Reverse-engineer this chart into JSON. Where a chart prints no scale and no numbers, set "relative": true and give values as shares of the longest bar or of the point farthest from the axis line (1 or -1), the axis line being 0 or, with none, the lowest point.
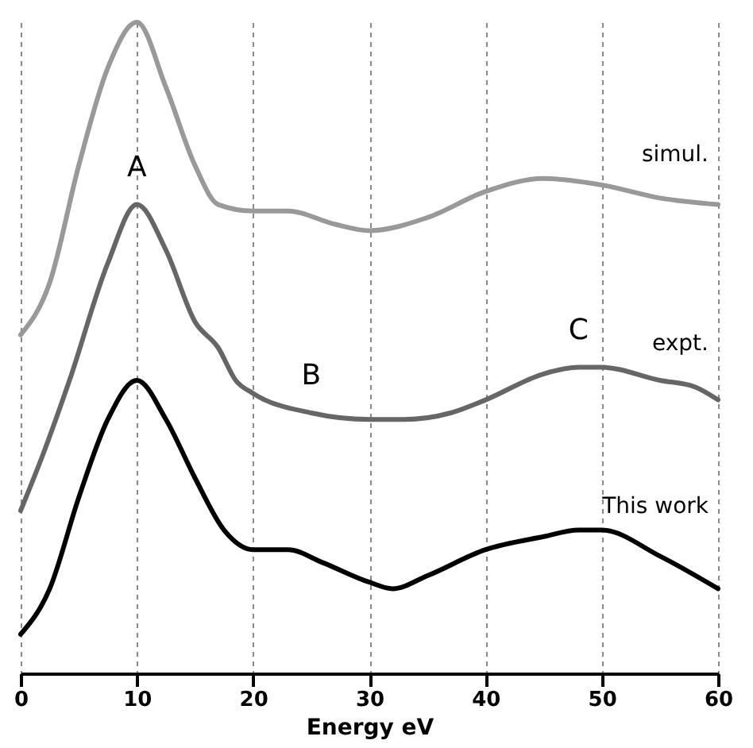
{
  "chart_data": {
    "type": "line",
    "relative": true,
    "xlabel": "Energy eV",
    "xlim": [
      0,
      60
    ],
    "xticks": [
      0,
      10,
      20,
      30,
      40,
      50,
      60
    ],
    "grid": "x",
    "legend": false,
    "marker": "none",
    "line_style": "solid",
    "series": [
      {
        "name": "simul.",
        "color": "#999999",
        "x": [
          0,
          2.5,
          5,
          7.5,
          10,
          12.5,
          15,
          17,
          20,
          23,
          27,
          30,
          35,
          40,
          45,
          50,
          55,
          60
        ],
        "values": [
          0.52,
          0.6,
          0.78,
          0.93,
          1.0,
          0.9,
          0.78,
          0.72,
          0.71,
          0.71,
          0.69,
          0.68,
          0.7,
          0.74,
          0.76,
          0.75,
          0.73,
          0.72
        ]
      },
      {
        "name": "expt.",
        "color": "#666666",
        "x": [
          0,
          2,
          4.2,
          7.5,
          10,
          12.5,
          15,
          17,
          18.5,
          20,
          25,
          30,
          33,
          37,
          40,
          45,
          48,
          50,
          55,
          58,
          60
        ],
        "values": [
          0.25,
          0.34,
          0.45,
          0.63,
          0.72,
          0.65,
          0.54,
          0.5,
          0.45,
          0.43,
          0.4,
          0.39,
          0.39,
          0.4,
          0.42,
          0.46,
          0.47,
          0.47,
          0.45,
          0.44,
          0.42
        ]
      },
      {
        "name": "This work",
        "color": "#000000",
        "x": [
          0,
          2.5,
          5,
          7.5,
          10,
          12.5,
          15,
          17.5,
          20,
          23,
          26,
          30,
          32,
          35,
          40,
          45,
          48,
          50,
          55,
          60
        ],
        "values": [
          0.06,
          0.13,
          0.27,
          0.39,
          0.45,
          0.39,
          0.3,
          0.22,
          0.19,
          0.19,
          0.17,
          0.14,
          0.13,
          0.15,
          0.19,
          0.21,
          0.22,
          0.22,
          0.18,
          0.13
        ]
      }
    ],
    "annotations": [
      {
        "text": "A",
        "x": 10,
        "y": 0.72
      },
      {
        "text": "B",
        "x": 25,
        "y": 0.4
      },
      {
        "text": "C",
        "x": 48,
        "y": 0.47
      }
    ]
  }
}
